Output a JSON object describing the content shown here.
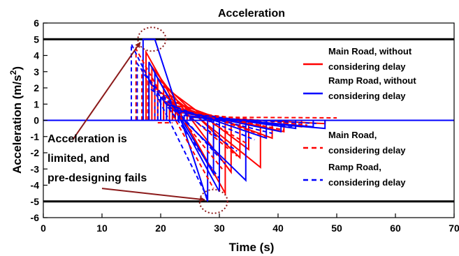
{
  "chart_data": {
    "type": "line",
    "title": "Acceleration",
    "xlabel": "Time (s)",
    "ylabel": "Acceleration (m/s",
    "ylabel_sup": "2",
    "ylabel_end": ")",
    "xlim": [
      0,
      70
    ],
    "ylim": [
      -6,
      6
    ],
    "xticks": [
      "0",
      "10",
      "20",
      "30",
      "40",
      "50",
      "60",
      "70"
    ],
    "yticks": [
      "-6",
      "-5",
      "-4",
      "-3",
      "-2",
      "-1",
      "0",
      "1",
      "2",
      "3",
      "4",
      "5",
      "6"
    ],
    "grid": false,
    "legend_position": "right",
    "reference_lines": [
      5,
      0,
      -5
    ],
    "series": [
      {
        "name": "Main Road, without considering delay",
        "color": "#ff0000",
        "dash": "solid",
        "segments": [
          [
            [
              17.5,
              0
            ],
            [
              17.5,
              4.2
            ],
            [
              31,
              -4.5
            ],
            [
              31,
              0
            ]
          ],
          [
            [
              18.5,
              0
            ],
            [
              18.5,
              3.3
            ],
            [
              32,
              -3.2
            ],
            [
              32,
              0
            ]
          ],
          [
            [
              19.5,
              0
            ],
            [
              19.5,
              2.6
            ],
            [
              33.5,
              -2.3
            ],
            [
              33.5,
              0
            ]
          ],
          [
            [
              20.5,
              0
            ],
            [
              20.5,
              2.1
            ],
            [
              35,
              -1.8
            ],
            [
              35,
              0
            ]
          ],
          [
            [
              21.5,
              0
            ],
            [
              21.5,
              1.6
            ],
            [
              37,
              -2.9
            ],
            [
              37,
              0
            ]
          ],
          [
            [
              22.5,
              0
            ],
            [
              22.5,
              1.1
            ],
            [
              39,
              -1.1
            ],
            [
              39,
              0
            ]
          ],
          [
            [
              23.5,
              0
            ],
            [
              23.5,
              0.7
            ],
            [
              41,
              -0.7
            ],
            [
              41,
              0
            ]
          ],
          [
            [
              24.5,
              0
            ],
            [
              24.5,
              0.4
            ],
            [
              44,
              -0.4
            ],
            [
              44,
              0
            ]
          ],
          [
            [
              25.5,
              0
            ],
            [
              25.5,
              0.2
            ],
            [
              48,
              -0.2
            ],
            [
              48,
              0
            ]
          ]
        ]
      },
      {
        "name": "Ramp Road, without considering delay",
        "color": "#0000ff",
        "dash": "solid",
        "segments": [
          [
            [
              17,
              0
            ],
            [
              17,
              5
            ],
            [
              19,
              5
            ],
            [
              28,
              -5
            ],
            [
              28,
              0
            ]
          ],
          [
            [
              18,
              0
            ],
            [
              18,
              3.6
            ],
            [
              30,
              -4.4
            ],
            [
              30,
              0
            ]
          ],
          [
            [
              19,
              0
            ],
            [
              19,
              2.9
            ],
            [
              29,
              -3.3
            ],
            [
              29,
              0
            ]
          ],
          [
            [
              20,
              0
            ],
            [
              20,
              1.4
            ],
            [
              34.5,
              -3.7
            ],
            [
              34.5,
              0
            ]
          ],
          [
            [
              21,
              0
            ],
            [
              21,
              1.0
            ],
            [
              38,
              -1.1
            ],
            [
              38,
              0
            ]
          ],
          [
            [
              22,
              0
            ],
            [
              22,
              0.7
            ],
            [
              40.5,
              -0.7
            ],
            [
              40.5,
              0
            ]
          ],
          [
            [
              23,
              0
            ],
            [
              23,
              0.5
            ],
            [
              43,
              -0.5
            ],
            [
              43,
              0
            ]
          ],
          [
            [
              24,
              0
            ],
            [
              24,
              0.3
            ],
            [
              46,
              -0.4
            ],
            [
              46,
              0
            ]
          ],
          [
            [
              25,
              0
            ],
            [
              25,
              0.2
            ],
            [
              48,
              -0.5
            ],
            [
              48,
              0
            ]
          ]
        ]
      },
      {
        "name": "Main Road, considering delay",
        "color": "#ff0000",
        "dash": "dashed",
        "segments": [
          [
            [
              15.8,
              0
            ],
            [
              15.8,
              4.4
            ],
            [
              29,
              -4.2
            ]
          ],
          [
            [
              16.8,
              0
            ],
            [
              16.8,
              3.1
            ],
            [
              30.5,
              -3.0
            ]
          ],
          [
            [
              17.8,
              0
            ],
            [
              17.8,
              2.4
            ],
            [
              33,
              -2.2
            ]
          ],
          [
            [
              19,
              0
            ],
            [
              19,
              1.9
            ],
            [
              35,
              -1.5
            ]
          ],
          [
            [
              20.5,
              0
            ],
            [
              20.5,
              1.2
            ],
            [
              38,
              -1.0
            ]
          ],
          [
            [
              22,
              0
            ],
            [
              22,
              0.8
            ],
            [
              41,
              -0.6
            ]
          ],
          [
            [
              23.5,
              0
            ],
            [
              23.5,
              0.5
            ],
            [
              45,
              -0.3
            ]
          ],
          [
            [
              25,
              0
            ],
            [
              25,
              0.2
            ],
            [
              50,
              0.15
            ]
          ],
          [
            [
              19.5,
              -0.15
            ],
            [
              22,
              -0.15
            ]
          ]
        ]
      },
      {
        "name": "Ramp Road, considering delay",
        "color": "#0000ff",
        "dash": "dashed",
        "segments": [
          [
            [
              15,
              0
            ],
            [
              15,
              4.7
            ],
            [
              28,
              -4.8
            ]
          ],
          [
            [
              16,
              0
            ],
            [
              16,
              3.5
            ],
            [
              30,
              -3.6
            ]
          ],
          [
            [
              17,
              0
            ],
            [
              17,
              2.9
            ],
            [
              31,
              -2.7
            ]
          ],
          [
            [
              18,
              0
            ],
            [
              18,
              2.0
            ],
            [
              33,
              -1.9
            ]
          ],
          [
            [
              19.5,
              0
            ],
            [
              19.5,
              1.3
            ],
            [
              36,
              -1.2
            ]
          ],
          [
            [
              21,
              0
            ],
            [
              21,
              0.8
            ],
            [
              39,
              -0.8
            ]
          ],
          [
            [
              23,
              0
            ],
            [
              23,
              0.5
            ],
            [
              43,
              -0.4
            ]
          ],
          [
            [
              25,
              0
            ],
            [
              25,
              0.2
            ],
            [
              47,
              -0.2
            ]
          ]
        ]
      }
    ],
    "annotations": {
      "text_lines": [
        "Acceleration is",
        "limited, and",
        "pre-designing fails"
      ],
      "marker_color": "#8b1a1a",
      "circles": [
        {
          "x": 18.5,
          "y": 5
        },
        {
          "x": 29,
          "y": -5
        }
      ],
      "arrows": [
        {
          "from": [
            5,
            -1.2
          ],
          "to": [
            16.5,
            4.8
          ]
        },
        {
          "from": [
            10,
            -4.2
          ],
          "to": [
            27.5,
            -4.9
          ]
        }
      ]
    }
  }
}
